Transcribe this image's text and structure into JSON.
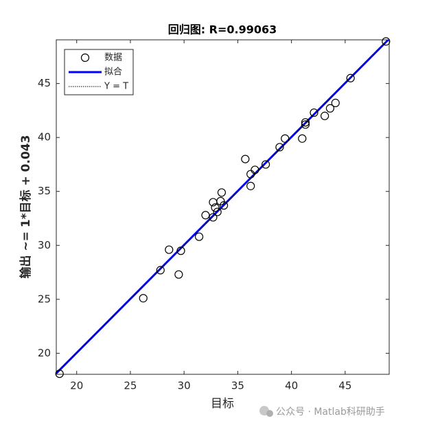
{
  "chart_data": {
    "type": "scatter",
    "title": "回归图: R=0.99063",
    "xlabel": "目标",
    "ylabel": "输出 ~= 1*目标 + 0.043",
    "xlim": [
      18.1,
      49.1
    ],
    "ylim": [
      18.05,
      49.05
    ],
    "xticks": [
      20,
      25,
      30,
      35,
      40,
      45
    ],
    "yticks": [
      20,
      25,
      30,
      35,
      40,
      45
    ],
    "fit": {
      "slope": 1,
      "intercept": 0.043
    },
    "legend": "upper left",
    "series": [
      {
        "name": "数据",
        "color": "#000000",
        "x": [
          18.4,
          26.2,
          27.8,
          28.6,
          29.5,
          29.7,
          31.4,
          32.0,
          32.7,
          32.7,
          32.9,
          33.1,
          33.4,
          33.5,
          33.7,
          35.7,
          36.2,
          36.2,
          36.6,
          37.6,
          38.9,
          39.4,
          41.0,
          41.3,
          41.3,
          42.1,
          43.1,
          43.6,
          44.1,
          45.5,
          48.8
        ],
        "values": [
          18.1,
          25.1,
          27.7,
          29.6,
          27.3,
          29.5,
          30.8,
          32.8,
          32.6,
          34.0,
          33.5,
          33.1,
          34.1,
          34.9,
          33.7,
          38.0,
          36.6,
          35.5,
          37.0,
          37.5,
          39.1,
          39.9,
          39.9,
          41.4,
          41.2,
          42.3,
          42.0,
          42.7,
          43.2,
          45.5,
          48.9
        ]
      },
      {
        "name": "拟合",
        "color": "#0000ff"
      },
      {
        "name": "Y = T",
        "color": "#000000"
      }
    ]
  },
  "watermark": "公众号 · Matlab科研助手"
}
